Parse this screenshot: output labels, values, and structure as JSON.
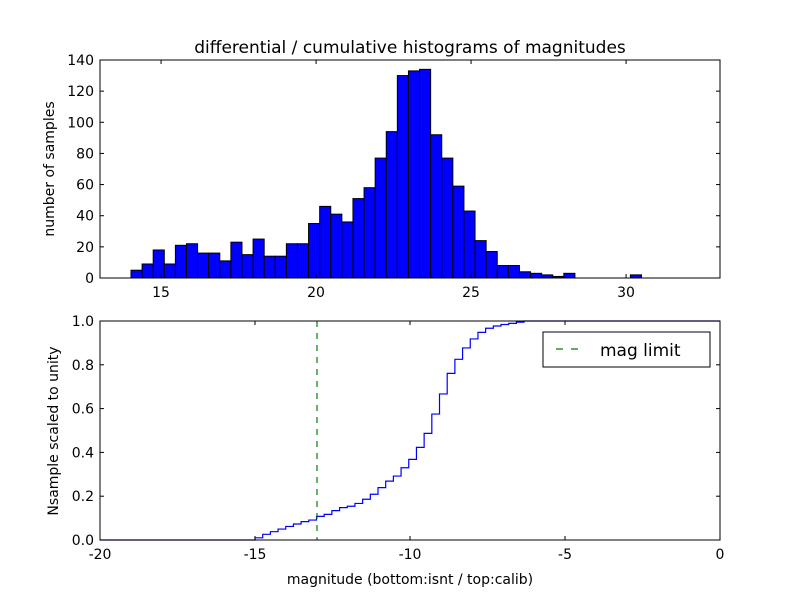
{
  "chart_data": [
    {
      "type": "bar",
      "title": "differential / cumulative histograms of magnitudes",
      "xlabel": "",
      "ylabel": "number of samples",
      "xlim": [
        13.03,
        33.03
      ],
      "ylim": [
        0,
        140
      ],
      "xticks": [
        15,
        20,
        25,
        30
      ],
      "yticks": [
        0,
        20,
        40,
        60,
        80,
        100,
        120,
        140
      ],
      "bin_start": 14.03,
      "bin_width": 0.358,
      "values": [
        5,
        9,
        18,
        9,
        21,
        22,
        16,
        16,
        11,
        23,
        15,
        25,
        14,
        14,
        22,
        22,
        35,
        46,
        41,
        36,
        51,
        58,
        77,
        94,
        130,
        133,
        134,
        92,
        77,
        59,
        43,
        24,
        17,
        8,
        8,
        4,
        3,
        2,
        1,
        3,
        0,
        0,
        0,
        0,
        0,
        2
      ],
      "color": "#0000ff"
    },
    {
      "type": "line",
      "title": "",
      "xlabel": "magnitude (bottom:isnt / top:calib)",
      "ylabel": "Nsample scaled to unity",
      "xlim": [
        -20,
        0
      ],
      "ylim": [
        0,
        1
      ],
      "xticks": [
        -20,
        -15,
        -10,
        -5,
        0
      ],
      "yticks": [
        0.0,
        0.2,
        0.4,
        0.6,
        0.8,
        1.0
      ],
      "step_start": -15.0,
      "step_width": 0.248,
      "values": [
        0.01,
        0.026,
        0.038,
        0.05,
        0.062,
        0.073,
        0.084,
        0.091,
        0.108,
        0.117,
        0.134,
        0.148,
        0.154,
        0.167,
        0.186,
        0.209,
        0.239,
        0.269,
        0.292,
        0.33,
        0.368,
        0.423,
        0.487,
        0.575,
        0.667,
        0.761,
        0.825,
        0.877,
        0.918,
        0.948,
        0.967,
        0.977,
        0.984,
        0.989,
        0.995,
        1.0
      ],
      "color": "#0000ff",
      "mag_limit": -13,
      "mag_limit_color": "#007f00",
      "legend": [
        "mag limit"
      ],
      "legend_position": "top-right"
    }
  ]
}
